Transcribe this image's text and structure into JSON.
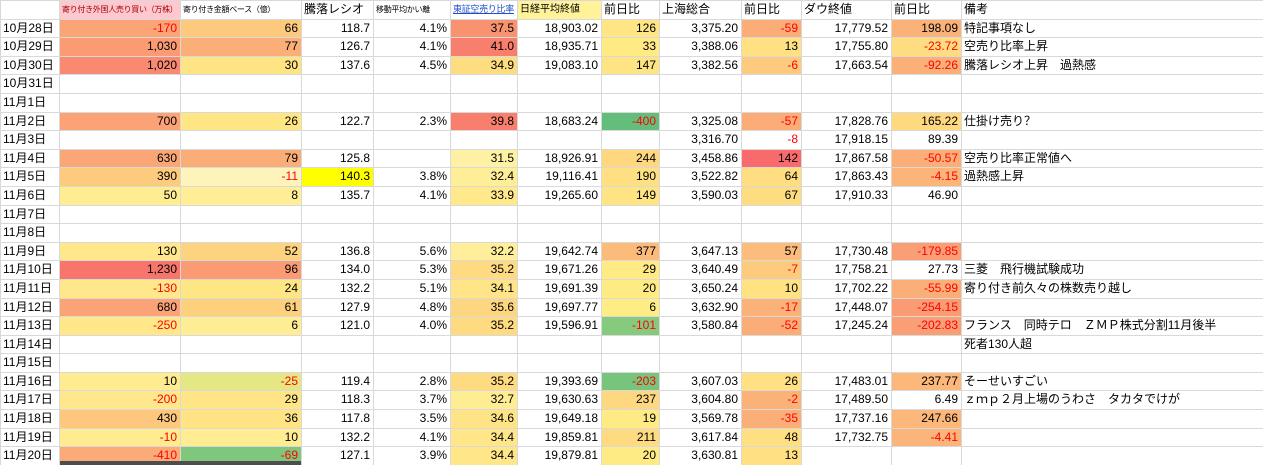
{
  "sheet": {
    "corner_label": "",
    "headers": [
      {
        "label": "寄り付き外国人売り買い（万株）",
        "cls": "h-tiny h-pink"
      },
      {
        "label": "寄り付き金額ベース（億）",
        "cls": "h-tiny"
      },
      {
        "label": "騰落レシオ",
        "cls": ""
      },
      {
        "label": "移動平均かい離",
        "cls": "h-tiny"
      },
      {
        "label": "東証空売り比率",
        "cls": "h-tiny h-link"
      },
      {
        "label": "日経平均終値",
        "cls": "h-small h-yellow"
      },
      {
        "label": "前日比",
        "cls": ""
      },
      {
        "label": "上海総合",
        "cls": ""
      },
      {
        "label": "前日比",
        "cls": ""
      },
      {
        "label": "ダウ終値",
        "cls": ""
      },
      {
        "label": "前日比",
        "cls": ""
      },
      {
        "label": "備考",
        "cls": ""
      }
    ],
    "rows": [
      {
        "date": "10月28日",
        "cells": [
          "-170",
          "66",
          "118.7",
          "4.1%",
          "37.5",
          "18,903.02",
          "126",
          "3,375.20",
          "-59",
          "17,779.52",
          "198.09"
        ],
        "bgs": [
          "#FBA577",
          "#FDC97D",
          "",
          "",
          "#F9926F",
          "",
          "#FFE584",
          "",
          "#FBAC77",
          "",
          "#FBB278"
        ],
        "note": "特記事項なし"
      },
      {
        "date": "10月29日",
        "cells": [
          "1,030",
          "77",
          "126.7",
          "4.1%",
          "41.0",
          "18,935.71",
          "33",
          "3,388.06",
          "13",
          "17,755.80",
          "-23.72"
        ],
        "bgs": [
          "#FA9B74",
          "#FBAE78",
          "",
          "",
          "#F87E6D",
          "",
          "#FFEA84",
          "",
          "#FFE083",
          "",
          "#FEDC81"
        ],
        "note": "空売り比率上昇"
      },
      {
        "date": "10月30日",
        "cells": [
          "1,020",
          "30",
          "137.6",
          "4.5%",
          "34.9",
          "19,083.10",
          "147",
          "3,382.56",
          "-6",
          "17,663.54",
          "-92.26"
        ],
        "bgs": [
          "#F98970",
          "#FFE483",
          "",
          "",
          "#FEDC80",
          "",
          "#FFE484",
          "",
          "#FDCA7E",
          "",
          "#FBB078"
        ],
        "note": "騰落レシオ上昇　過熱感"
      },
      {
        "date": "10月31日",
        "cells": [
          "",
          "",
          "",
          "",
          "",
          "",
          "",
          "",
          "",
          "",
          ""
        ],
        "bgs": [
          "",
          "",
          "",
          "",
          "",
          "",
          "",
          "",
          "",
          "",
          ""
        ],
        "note": ""
      },
      {
        "date": "11月1日",
        "cells": [
          "",
          "",
          "",
          "",
          "",
          "",
          "",
          "",
          "",
          "",
          ""
        ],
        "bgs": [
          "",
          "",
          "",
          "",
          "",
          "",
          "",
          "",
          "",
          "",
          ""
        ],
        "note": ""
      },
      {
        "date": "11月2日",
        "cells": [
          "700",
          "26",
          "122.7",
          "2.3%",
          "39.8",
          "18,683.24",
          "-400",
          "3,325.08",
          "-57",
          "17,828.76",
          "165.22"
        ],
        "bgs": [
          "#FBA276",
          "#FFE684",
          "",
          "",
          "#F87F6D",
          "",
          "#63BE7B",
          "",
          "#FBAC77",
          "",
          "#FED980"
        ],
        "note": "仕掛け売り？"
      },
      {
        "date": "11月3日",
        "cells": [
          "",
          "",
          "",
          "",
          "",
          "",
          "",
          "3,316.70",
          "-8",
          "17,918.15",
          "89.39"
        ],
        "bgs": [
          "",
          "",
          "",
          "",
          "",
          "",
          "",
          "",
          "",
          "",
          ""
        ],
        "note": ""
      },
      {
        "date": "11月4日",
        "cells": [
          "630",
          "79",
          "125.8",
          "",
          "31.5",
          "18,926.91",
          "244",
          "3,458.86",
          "142",
          "17,867.58",
          "-50.57"
        ],
        "bgs": [
          "#FBA677",
          "#FBAD78",
          "",
          "",
          "#FFF1A4",
          "",
          "#FED77F",
          "",
          "#F86A6B",
          "",
          "#FBAE78"
        ],
        "note": "空売り比率正常値へ"
      },
      {
        "date": "11月5日",
        "cells": [
          "390",
          "-11",
          "140.3",
          "3.8%",
          "32.4",
          "19,116.41",
          "190",
          "3,522.82",
          "64",
          "17,863.43",
          "-4.15"
        ],
        "bgs": [
          "#FDCB7E",
          "#FFF3BC",
          "#FFFF00",
          "",
          "#FFEE98",
          "",
          "#FEDF82",
          "",
          "#FEDE81",
          "",
          "#FBB579"
        ],
        "note": "過熱感上昇"
      },
      {
        "date": "11月6日",
        "cells": [
          "50",
          "8",
          "135.7",
          "4.1%",
          "33.9",
          "19,265.60",
          "149",
          "3,590.03",
          "67",
          "17,910.33",
          "46.90"
        ],
        "bgs": [
          "#FFED92",
          "#FFEE96",
          "",
          "",
          "#FFE98A",
          "",
          "#FFE484",
          "",
          "#FEDD81",
          "",
          ""
        ],
        "note": ""
      },
      {
        "date": "11月7日",
        "cells": [
          "",
          "",
          "",
          "",
          "",
          "",
          "",
          "",
          "",
          "",
          ""
        ],
        "bgs": [
          "",
          "",
          "",
          "",
          "",
          "",
          "",
          "",
          "",
          "",
          ""
        ],
        "note": ""
      },
      {
        "date": "11月8日",
        "cells": [
          "",
          "",
          "",
          "",
          "",
          "",
          "",
          "",
          "",
          "",
          ""
        ],
        "bgs": [
          "",
          "",
          "",
          "",
          "",
          "",
          "",
          "",
          "",
          "",
          ""
        ],
        "note": ""
      },
      {
        "date": "11月9日",
        "cells": [
          "130",
          "52",
          "136.8",
          "5.6%",
          "32.2",
          "19,642.74",
          "377",
          "3,647.13",
          "57",
          "17,730.48",
          "-179.85"
        ],
        "bgs": [
          "#FFE88B",
          "#FDD37F",
          "",
          "",
          "#FFEE9A",
          "",
          "#FCBA7B",
          "",
          "#FCBD7C",
          "",
          "#FA9E75"
        ],
        "note": ""
      },
      {
        "date": "11月10日",
        "cells": [
          "1,230",
          "96",
          "134.0",
          "5.3%",
          "35.2",
          "19,671.26",
          "29",
          "3,640.49",
          "-7",
          "17,758.21",
          "27.73"
        ],
        "bgs": [
          "#F8756C",
          "#FA9B74",
          "",
          "",
          "#FEDA80",
          "",
          "#FFEA84",
          "",
          "#FDCB7E",
          "",
          ""
        ],
        "note": "三菱　飛行機試験成功"
      },
      {
        "date": "11月11日",
        "cells": [
          "-130",
          "24",
          "132.2",
          "5.1%",
          "34.1",
          "19,691.39",
          "20",
          "3,650.24",
          "10",
          "17,702.22",
          "-55.99"
        ],
        "bgs": [
          "#FFE88C",
          "#FFE684",
          "",
          "",
          "#FFE587",
          "",
          "#FFEB84",
          "",
          "#FFE383",
          "",
          "#FBAF78"
        ],
        "note": "寄り付き前久々の株数売り越し"
      },
      {
        "date": "11月12日",
        "cells": [
          "680",
          "61",
          "127.9",
          "4.8%",
          "35.6",
          "19,697.77",
          "6",
          "3,632.90",
          "-17",
          "17,448.07",
          "-254.15"
        ],
        "bgs": [
          "#FBA376",
          "#FDD07E",
          "",
          "",
          "#FDD680",
          "",
          "#FFEC84",
          "",
          "#FBB279",
          "",
          "#FA9B74"
        ],
        "note": ""
      },
      {
        "date": "11月13日",
        "cells": [
          "-250",
          "6",
          "121.0",
          "4.0%",
          "35.2",
          "19,596.91",
          "-101",
          "3,580.84",
          "-52",
          "17,245.24",
          "-202.83"
        ],
        "bgs": [
          "#FFE78A",
          "#FFED96",
          "",
          "",
          "#FEDA80",
          "",
          "#86CA7E",
          "",
          "#FBAD77",
          "",
          "#FA9E75"
        ],
        "note": "フランス　同時テロ　ＺＭＰ株式分割11月後半"
      },
      {
        "date": "11月14日",
        "cells": [
          "",
          "",
          "",
          "",
          "",
          "",
          "",
          "",
          "",
          "",
          ""
        ],
        "bgs": [
          "",
          "",
          "",
          "",
          "",
          "",
          "",
          "",
          "",
          "",
          ""
        ],
        "note": "死者130人超"
      },
      {
        "date": "11月15日",
        "cells": [
          "",
          "",
          "",
          "",
          "",
          "",
          "",
          "",
          "",
          "",
          ""
        ],
        "bgs": [
          "",
          "",
          "",
          "",
          "",
          "",
          "",
          "",
          "",
          "",
          ""
        ],
        "note": ""
      },
      {
        "date": "11月16日",
        "cells": [
          "10",
          "-25",
          "119.4",
          "2.8%",
          "35.2",
          "19,393.69",
          "-203",
          "3,607.03",
          "26",
          "17,483.01",
          "237.77"
        ],
        "bgs": [
          "#FFEB90",
          "#E4E783",
          "",
          "",
          "#FEDA80",
          "",
          "#77C57C",
          "",
          "#FFE183",
          "",
          "#FCB77A"
        ],
        "note": "そーせいすごい"
      },
      {
        "date": "11月17日",
        "cells": [
          "-200",
          "29",
          "118.3",
          "3.7%",
          "32.7",
          "19,630.63",
          "237",
          "3,604.80",
          "-2",
          "17,489.50",
          "6.49"
        ],
        "bgs": [
          "#FFE88B",
          "#FFE585",
          "",
          "",
          "#FFED94",
          "",
          "#FED880",
          "",
          "#FBB279",
          "",
          ""
        ],
        "note": "ｚｍｐ２月上場のうわさ　タカタでけが"
      },
      {
        "date": "11月18日",
        "cells": [
          "430",
          "36",
          "117.8",
          "3.5%",
          "34.6",
          "19,649.18",
          "19",
          "3,569.78",
          "-35",
          "17,737.16",
          "247.66"
        ],
        "bgs": [
          "#FDC77D",
          "#FFE384",
          "",
          "",
          "#FFE487",
          "",
          "#FFEB84",
          "",
          "#FBAF78",
          "",
          "#FCB87A"
        ],
        "note": ""
      },
      {
        "date": "11月19日",
        "cells": [
          "-10",
          "10",
          "132.2",
          "4.1%",
          "34.4",
          "19,859.81",
          "211",
          "3,617.84",
          "48",
          "17,732.75",
          "-4.41"
        ],
        "bgs": [
          "#FFEC91",
          "#FFEC93",
          "",
          "",
          "#FFE688",
          "",
          "#FEDB80",
          "",
          "#FEE082",
          "",
          "#FBB479"
        ],
        "note": ""
      },
      {
        "date": "11月20日",
        "cells": [
          "-410",
          "-69",
          "127.1",
          "3.9%",
          "34.4",
          "19,879.81",
          "20",
          "3,630.81",
          "13",
          "",
          ""
        ],
        "bgs": [
          "#FBAB77",
          "#7FC77D",
          "",
          "",
          "#FFE688",
          "",
          "#FFEB84",
          "",
          "#FFE083",
          "",
          ""
        ],
        "note": ""
      }
    ]
  },
  "colors": {
    "negative_text": "#FF0000",
    "gridline": "#D9D9D9",
    "header_pink_bg": "#FFC7CE",
    "header_pink_text": "#9C0006",
    "header_yellow_bg": "#FFF299",
    "ratio_highlight": "#FFFF00",
    "scale_red": "#F8696B",
    "scale_yellow": "#FFEB84",
    "scale_green": "#63BE7B",
    "partial_next_row": "#4D4D4D"
  }
}
